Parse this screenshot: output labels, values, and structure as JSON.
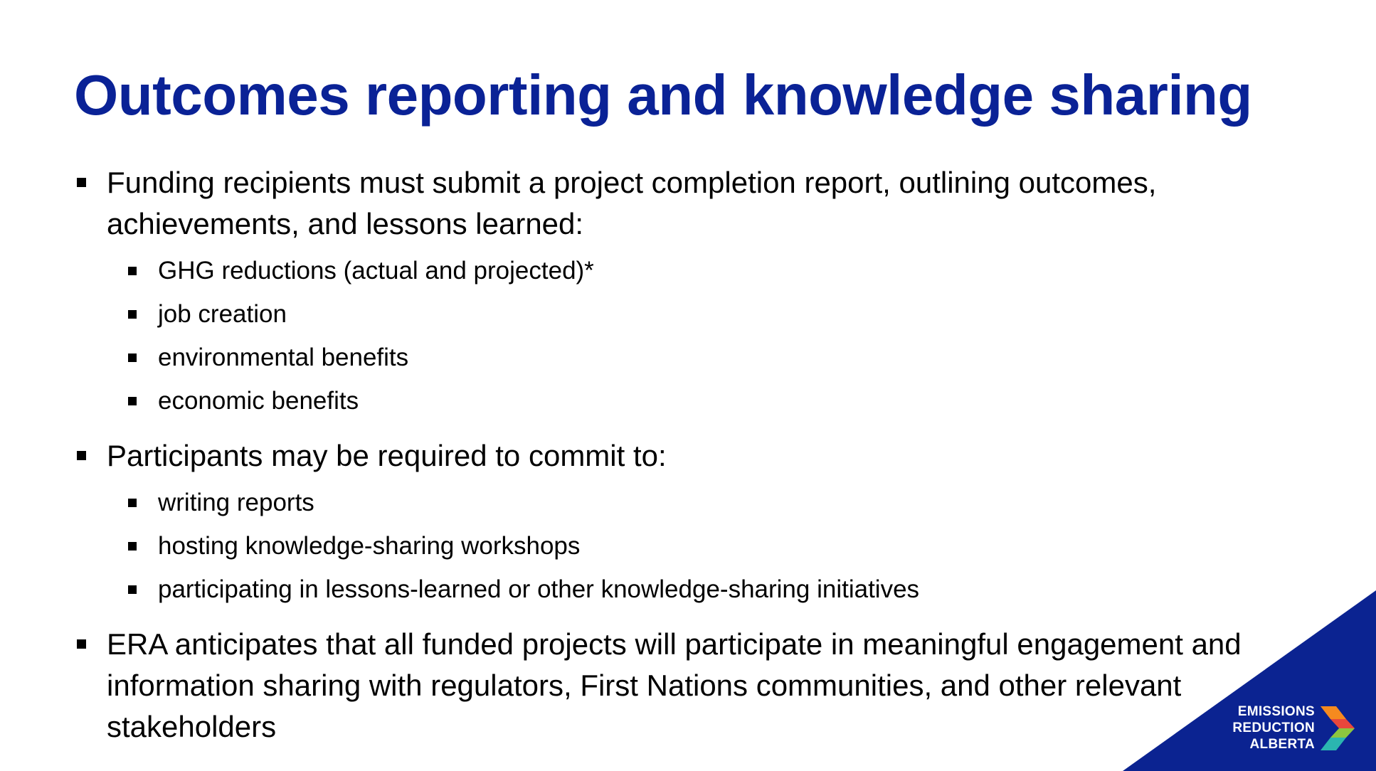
{
  "slide": {
    "title": "Outcomes reporting and knowledge sharing",
    "bullets": [
      {
        "text": "Funding recipients must submit a project completion report, outlining outcomes, achievements, and lessons learned:",
        "sub": [
          "GHG reductions (actual and projected)*",
          "job creation",
          "environmental benefits",
          "economic benefits"
        ]
      },
      {
        "text": "Participants may be required to commit to:",
        "sub": [
          "writing reports",
          "hosting knowledge-sharing workshops",
          "participating in lessons-learned or other knowledge-sharing initiatives"
        ]
      },
      {
        "text": "ERA anticipates that all funded projects will participate in meaningful engagement and information sharing with regulators, First Nations communities, and other relevant stakeholders",
        "sub": []
      }
    ]
  },
  "logo": {
    "line1": "EMISSIONS",
    "line2": "REDUCTION",
    "line3": "ALBERTA",
    "icon": "chevron-logo-icon"
  },
  "colors": {
    "title": "#0a2296",
    "corner": "#0b2391",
    "logo_orange": "#f58a1f",
    "logo_red": "#e8473c",
    "logo_green": "#8cc63f",
    "logo_teal": "#2bb5b0"
  }
}
